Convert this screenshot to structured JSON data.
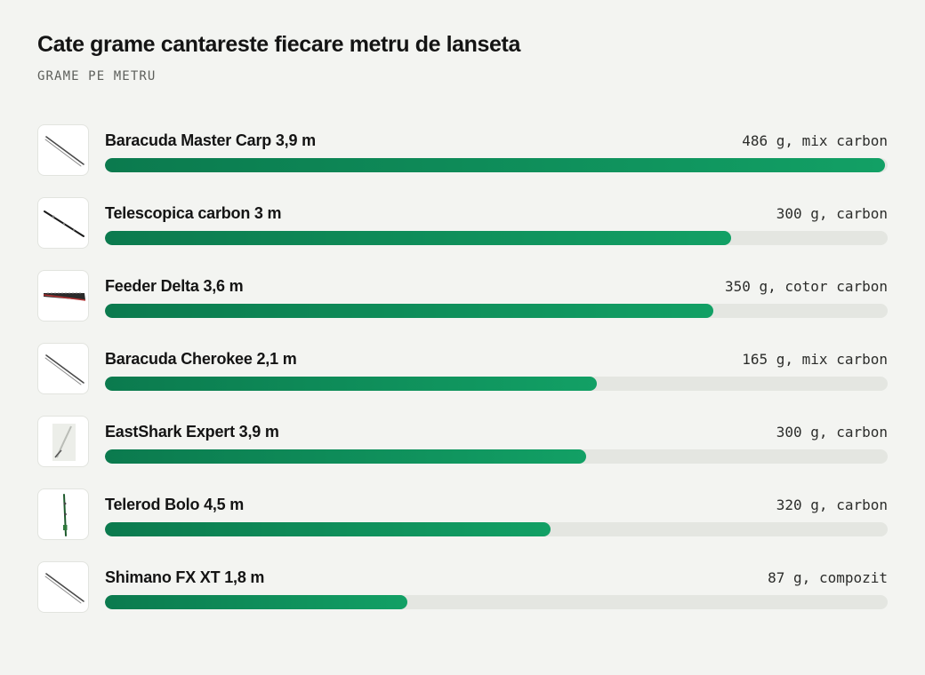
{
  "header": {
    "title": "Cate grame cantareste fiecare metru de lanseta",
    "subtitle": "GRAME PE METRU"
  },
  "colors": {
    "bar_start": "#0b7a4e",
    "bar_end": "#12a065",
    "track": "#e4e6e1",
    "background": "#f3f4f1"
  },
  "chart_data": {
    "type": "bar",
    "orientation": "horizontal",
    "title": "Cate grame cantareste fiecare metru de lanseta",
    "subtitle": "GRAME PE METRU",
    "xlim": [
      0,
      125
    ],
    "categories": [
      "Baracuda Master Carp 3,9 m",
      "Telescopica carbon 3 m",
      "Feeder Delta 3,6 m",
      "Baracuda Cherokee 2,1 m",
      "EastShark Expert 3,9 m",
      "Telerod Bolo 4,5 m",
      "Shimano FX XT 1,8 m"
    ],
    "values": [
      124.6,
      100,
      97.2,
      78.6,
      76.9,
      71.1,
      48.3
    ],
    "labels": [
      "486 g, mix carbon",
      "300 g, carbon",
      "350 g, cotor carbon",
      "165 g, mix carbon",
      "300 g, carbon",
      "320 g, carbon",
      "87 g, compozit"
    ],
    "icons": [
      "fishing-rod-icon",
      "telescopic-rod-icon",
      "feeder-rod-icon",
      "fishing-rod-icon",
      "rod-blank-icon",
      "bolo-rod-icon",
      "fishing-rod-icon"
    ]
  }
}
